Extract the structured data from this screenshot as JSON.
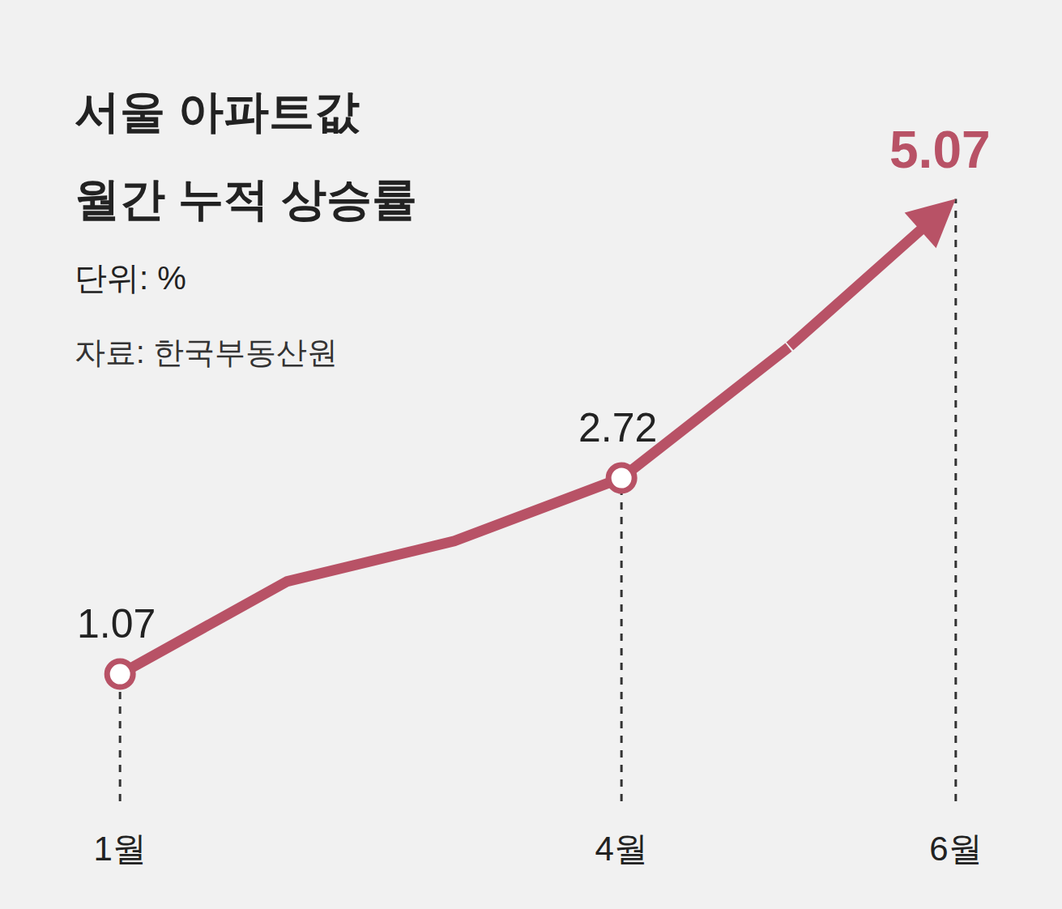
{
  "chart_data": {
    "type": "line",
    "title": [
      "서울 아파트값",
      "월간 누적 상승률"
    ],
    "unit": "단위: %",
    "source": "자료: 한국부동산원",
    "categories": [
      "1월",
      null,
      null,
      "4월",
      null,
      "6월"
    ],
    "values": [
      1.07,
      1.85,
      2.19,
      2.72,
      3.82,
      5.07
    ],
    "value_labels": [
      "1.07",
      null,
      null,
      "2.72",
      null,
      "5.07"
    ],
    "color": "#b85266",
    "ylim": [
      0,
      5.7
    ],
    "yticks": [],
    "grid": false,
    "data_labels": true,
    "tick_labels": "x",
    "marker": "circle"
  }
}
